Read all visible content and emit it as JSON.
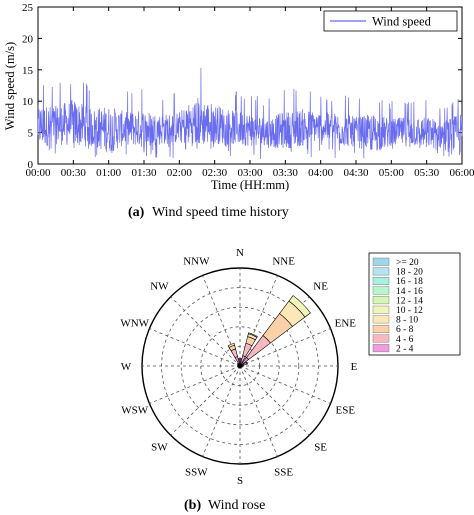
{
  "chart_data": [
    {
      "type": "line",
      "caption_label": "(a)",
      "caption_text": "Wind speed time history",
      "xlabel": "Time (HH:mm)",
      "ylabel": "Wind speed (m/s)",
      "x_ticks": [
        "00:00",
        "00:30",
        "01:00",
        "01:30",
        "02:00",
        "02:30",
        "03:00",
        "03:30",
        "04:00",
        "04:30",
        "05:00",
        "05:30",
        "06:00"
      ],
      "y_ticks": [
        "0",
        "5",
        "10",
        "15",
        "20",
        "25"
      ],
      "ylim": [
        0,
        25
      ],
      "x_range": [
        "00:00",
        "06:00"
      ],
      "legend": "top-right",
      "color": "#6a6cf0",
      "series": [
        {
          "name": "Wind speed",
          "x_minutes": [
            0,
            15,
            30,
            45,
            60,
            75,
            90,
            105,
            120,
            135,
            150,
            165,
            180,
            195,
            210,
            225,
            240,
            255,
            270,
            285,
            300,
            315,
            330,
            345,
            360
          ],
          "mean": [
            6.0,
            6.2,
            6.5,
            5.8,
            5.5,
            5.7,
            5.6,
            5.5,
            5.8,
            6.8,
            6.4,
            5.8,
            5.5,
            5.0,
            5.4,
            5.8,
            6.0,
            5.5,
            5.1,
            4.9,
            5.0,
            5.2,
            5.0,
            4.7,
            4.5
          ],
          "peak": [
            13.8,
            13.0,
            15.0,
            12.5,
            14.0,
            11.5,
            12.5,
            11.0,
            11.5,
            16.0,
            13.5,
            12.0,
            11.5,
            10.5,
            12.0,
            12.5,
            11.0,
            11.5,
            10.5,
            11.8,
            10.0,
            10.5,
            10.5,
            10.0,
            12.5
          ],
          "min": [
            0.5,
            0.8,
            0.6,
            0.7,
            0.9,
            0.8,
            0.7,
            0.9,
            0.8,
            0.9,
            1.0,
            0.8,
            0.7,
            0.8,
            0.7,
            0.9,
            0.8,
            0.6,
            0.8,
            0.7,
            0.9,
            0.8,
            0.8,
            0.7,
            0.6
          ]
        }
      ]
    },
    {
      "type": "wind-rose",
      "caption_label": "(b)",
      "caption_text": "Wind rose",
      "directions": [
        "N",
        "NNE",
        "NE",
        "ENE",
        "E",
        "ESE",
        "SE",
        "SSE",
        "S",
        "SSW",
        "SW",
        "WSW",
        "W",
        "WNW",
        "NW",
        "NNW"
      ],
      "legend": "right",
      "bins": [
        {
          "label": ">= 20",
          "color": "#9fd6ea"
        },
        {
          "label": "18 - 20",
          "color": "#b5e3f2"
        },
        {
          "label": "16 - 18",
          "color": "#a8f0e0"
        },
        {
          "label": "14 - 16",
          "color": "#b8f5c8"
        },
        {
          "label": "12 - 14",
          "color": "#d3f7b4"
        },
        {
          "label": "10 - 12",
          "color": "#f2f5b8"
        },
        {
          "label": "8 - 10",
          "color": "#fbe7b8"
        },
        {
          "label": "6 - 8",
          "color": "#fad1a8"
        },
        {
          "label": "4 - 6",
          "color": "#f7b8c0"
        },
        {
          "label": "2 - 4",
          "color": "#f09ce0"
        }
      ],
      "radial_max": 5,
      "sectors": [
        {
          "direction": "N",
          "values": [
            0.25,
            0.1,
            0.05,
            0,
            0
          ]
        },
        {
          "direction": "NNE",
          "values": [
            0.55,
            0.65,
            0.35,
            0.15,
            0.05
          ]
        },
        {
          "direction": "NE",
          "values": [
            0.55,
            1.4,
            1.4,
            0.8,
            0.35
          ]
        },
        {
          "direction": "ENE",
          "values": [
            0.2,
            0.15,
            0.05,
            0,
            0
          ]
        },
        {
          "direction": "E",
          "values": [
            0.12,
            0.05,
            0,
            0,
            0
          ]
        },
        {
          "direction": "ESE",
          "values": [
            0.08,
            0,
            0,
            0,
            0
          ]
        },
        {
          "direction": "SE",
          "values": [
            0.08,
            0,
            0,
            0,
            0
          ]
        },
        {
          "direction": "SSE",
          "values": [
            0.08,
            0,
            0,
            0,
            0
          ]
        },
        {
          "direction": "S",
          "values": [
            0.08,
            0,
            0,
            0,
            0
          ]
        },
        {
          "direction": "SSW",
          "values": [
            0.08,
            0,
            0,
            0,
            0
          ]
        },
        {
          "direction": "SW",
          "values": [
            0.1,
            0,
            0,
            0,
            0
          ]
        },
        {
          "direction": "WSW",
          "values": [
            0.1,
            0,
            0,
            0,
            0
          ]
        },
        {
          "direction": "W",
          "values": [
            0.12,
            0,
            0,
            0,
            0
          ]
        },
        {
          "direction": "WNW",
          "values": [
            0.1,
            0,
            0,
            0,
            0
          ]
        },
        {
          "direction": "NW",
          "values": [
            0.12,
            0.05,
            0,
            0,
            0
          ]
        },
        {
          "direction": "NNW",
          "values": [
            0.5,
            0.4,
            0.2,
            0.1,
            0
          ]
        }
      ],
      "sector_bin_order": [
        "2 - 4",
        "4 - 6",
        "6 - 8",
        "8 - 10",
        "10 - 12"
      ]
    }
  ]
}
